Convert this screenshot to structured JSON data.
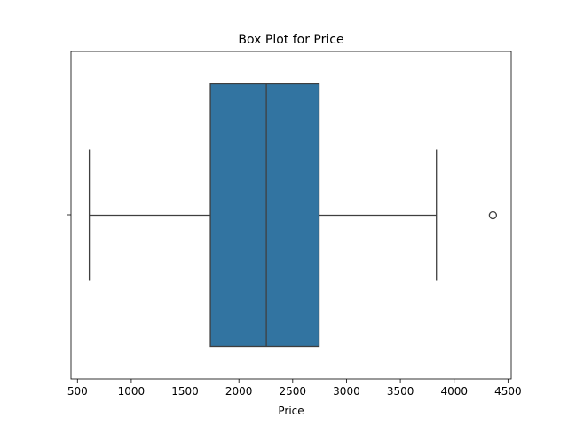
{
  "chart_data": {
    "type": "box",
    "title": "Box Plot for Price",
    "xlabel": "Price",
    "ylabel": "",
    "orientation": "horizontal",
    "xlim": [
      440,
      4530
    ],
    "xticks": [
      500,
      1000,
      1500,
      2000,
      2500,
      3000,
      3500,
      4000,
      4500
    ],
    "xtick_labels": [
      "500",
      "1000",
      "1500",
      "2000",
      "2500",
      "3000",
      "3500",
      "4000",
      "4500"
    ],
    "grid": false,
    "box": {
      "whisker_low": 610,
      "q1": 1735,
      "median": 2255,
      "q3": 2745,
      "whisker_high": 3835,
      "outliers": [
        4360
      ]
    },
    "colors": {
      "box_fill": "#3274a1",
      "line": "#3f3f3f"
    }
  }
}
